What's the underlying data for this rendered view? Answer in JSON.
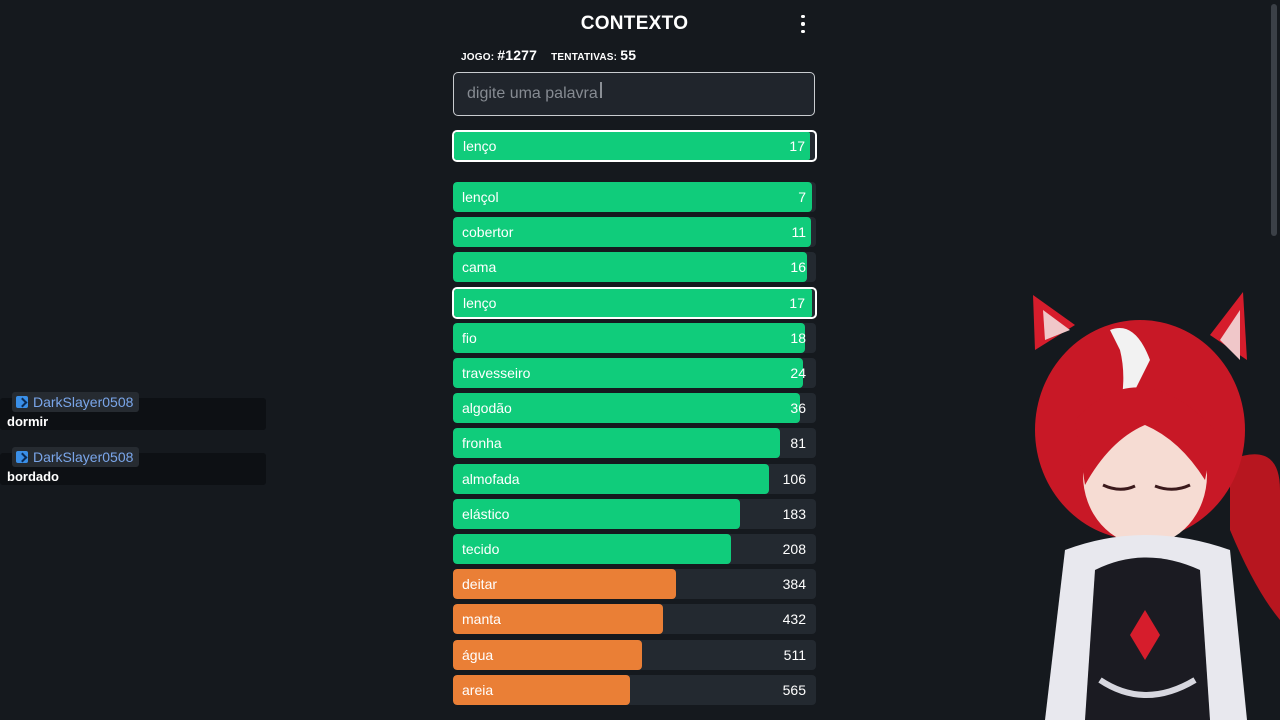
{
  "header": {
    "title": "CONTEXTO",
    "menu_icon": "vertical-dots-icon"
  },
  "stats": {
    "game_label": "JOGO:",
    "game_value": "#1277",
    "tries_label": "TENTATIVAS:",
    "tries_value": "55"
  },
  "search": {
    "placeholder": "digite uma palavra",
    "value": ""
  },
  "last_guess": {
    "word": "lenço",
    "rank": "17",
    "fill": 0.985
  },
  "guesses": [
    {
      "word": "lençol",
      "rank": "7",
      "fill": 0.99,
      "color": "green"
    },
    {
      "word": "cobertor",
      "rank": "11",
      "fill": 0.985,
      "color": "green"
    },
    {
      "word": "cama",
      "rank": "16",
      "fill": 0.975,
      "color": "green"
    },
    {
      "word": "lenço",
      "rank": "17",
      "fill": 0.985,
      "color": "green",
      "current": true
    },
    {
      "word": "fio",
      "rank": "18",
      "fill": 0.97,
      "color": "green"
    },
    {
      "word": "travesseiro",
      "rank": "24",
      "fill": 0.965,
      "color": "green"
    },
    {
      "word": "algodão",
      "rank": "36",
      "fill": 0.955,
      "color": "green"
    },
    {
      "word": "fronha",
      "rank": "81",
      "fill": 0.9,
      "color": "green"
    },
    {
      "word": "almofada",
      "rank": "106",
      "fill": 0.87,
      "color": "green"
    },
    {
      "word": "elástico",
      "rank": "183",
      "fill": 0.79,
      "color": "green"
    },
    {
      "word": "tecido",
      "rank": "208",
      "fill": 0.765,
      "color": "green"
    },
    {
      "word": "deitar",
      "rank": "384",
      "fill": 0.615,
      "color": "orange"
    },
    {
      "word": "manta",
      "rank": "432",
      "fill": 0.578,
      "color": "orange"
    },
    {
      "word": "água",
      "rank": "511",
      "fill": 0.522,
      "color": "orange"
    },
    {
      "word": "areia",
      "rank": "565",
      "fill": 0.488,
      "color": "orange"
    }
  ],
  "chat": [
    {
      "user": "DarkSlayer0508",
      "message": "dormir"
    },
    {
      "user": "DarkSlayer0508",
      "message": "bordado"
    }
  ],
  "colors": {
    "background": "#15191e",
    "green": "#10cc7b",
    "orange": "#ea7f36",
    "track": "#232930",
    "username": "#7aa6ea"
  }
}
